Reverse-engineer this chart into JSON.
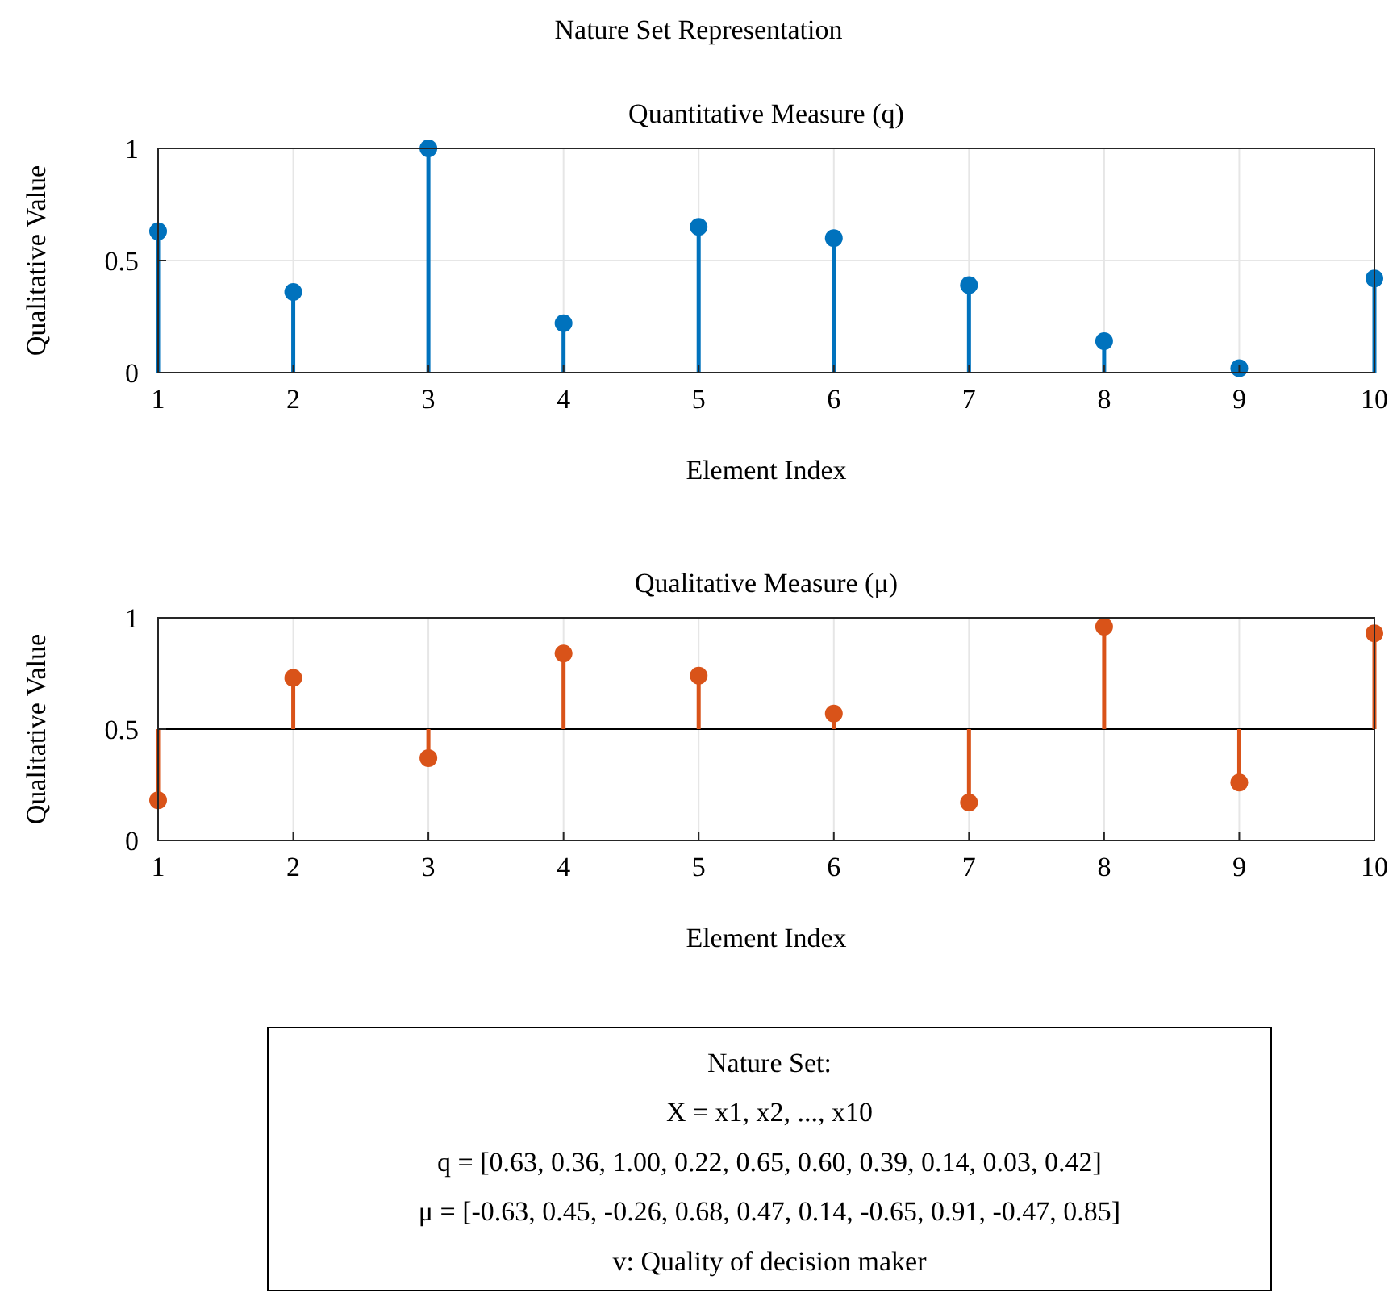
{
  "chart_data": [
    {
      "type": "lollipop",
      "title": "Nature Set Representation",
      "subtitle": "Quantitative Measure (q)",
      "xlabel": "Element Index",
      "ylabel": "Qualitative Value",
      "x": [
        1,
        2,
        3,
        4,
        5,
        6,
        7,
        8,
        9,
        10
      ],
      "series": [
        {
          "color": "#0072bd",
          "values": [
            0.63,
            0.36,
            1.0,
            0.22,
            0.65,
            0.6,
            0.39,
            0.14,
            0.02,
            0.42
          ]
        }
      ],
      "xlim": [
        1,
        10
      ],
      "xticks": [
        1,
        2,
        3,
        4,
        5,
        6,
        7,
        8,
        9,
        10
      ],
      "ylim": [
        0,
        1
      ],
      "yticks": [
        0,
        0.5,
        1
      ],
      "grid": true,
      "marker": "circle"
    },
    {
      "type": "lollipop",
      "title": "Qualitative Measure (μ)",
      "xlabel": "Element Index",
      "ylabel": "Qualitative Value",
      "x": [
        1,
        2,
        3,
        4,
        5,
        6,
        7,
        8,
        9,
        10
      ],
      "series": [
        {
          "type": "scatter",
          "color": "#d95319",
          "values": [
            0.18,
            0.73,
            0.37,
            0.84,
            0.74,
            0.57,
            0.17,
            0.96,
            0.26,
            0.93
          ],
          "errors": [
            [
              0.18,
              0.5
            ],
            [
              0.5,
              0.73
            ],
            [
              0.37,
              0.5
            ],
            [
              0.5,
              0.84
            ],
            [
              0.5,
              0.74
            ],
            [
              0.5,
              0.57
            ],
            [
              0.17,
              0.5
            ],
            [
              0.5,
              0.96
            ],
            [
              0.26,
              0.5
            ],
            [
              0.5,
              0.93
            ]
          ]
        }
      ],
      "xlim": [
        1,
        10
      ],
      "xticks": [
        1,
        2,
        3,
        4,
        5,
        6,
        7,
        8,
        9,
        10
      ],
      "ylim": [
        0,
        1
      ],
      "yticks": [
        0,
        0.5,
        1
      ],
      "grid": true,
      "marker": "circle",
      "ref_lines": [
        {
          "axis": "y",
          "value": 0.5,
          "color": "#000000"
        }
      ]
    },
    {
      "type": "other",
      "annotations": [
        "Nature Set:",
        "X = x1, x2, ..., x10",
        "q = [0.63, 0.36, 1.00, 0.22, 0.65, 0.60, 0.39, 0.14, 0.03, 0.42]",
        "μ = [-0.63, 0.45, -0.26, 0.68, 0.47, 0.14, -0.65, 0.91, -0.47, 0.85]",
        "v: Quality of decision maker"
      ]
    }
  ]
}
